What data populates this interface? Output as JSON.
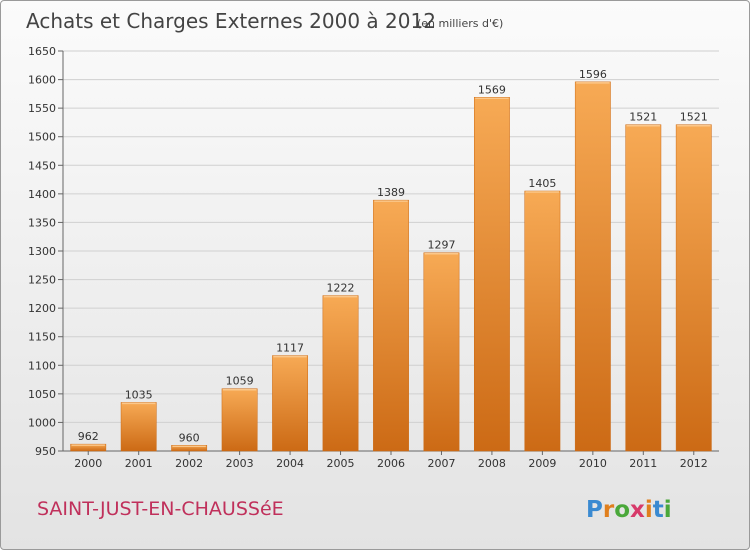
{
  "chart_data": {
    "type": "bar",
    "title": "Achats et Charges Externes 2000 à 2012",
    "subtitle": "(en milliers d'€)",
    "categories": [
      "2000",
      "2001",
      "2002",
      "2003",
      "2004",
      "2005",
      "2006",
      "2007",
      "2008",
      "2009",
      "2010",
      "2011",
      "2012"
    ],
    "values": [
      962,
      1035,
      960,
      1059,
      1117,
      1222,
      1389,
      1297,
      1569,
      1405,
      1596,
      1521,
      1521
    ],
    "ylim": [
      950,
      1650
    ],
    "yticks": [
      950,
      1000,
      1050,
      1100,
      1150,
      1200,
      1250,
      1300,
      1350,
      1400,
      1450,
      1500,
      1550,
      1600,
      1650
    ],
    "grid": true,
    "bar_color": "#f2953a",
    "bar_color_light": "#f7aa55",
    "bar_color_dark": "#cc6a15"
  },
  "commune": "SAINT-JUST-EN-CHAUSSéE",
  "logo": {
    "text": "Proxiti",
    "colors": [
      "#3a8ad1",
      "#e07f1d",
      "#4aa83a",
      "#d73a6a",
      "#e07f1d",
      "#3a8ad1",
      "#4aa83a"
    ]
  }
}
